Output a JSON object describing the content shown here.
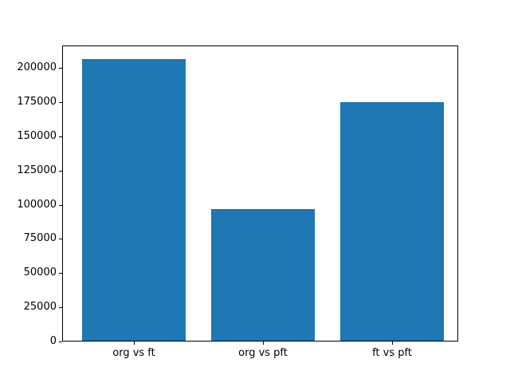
{
  "chart_data": {
    "type": "bar",
    "title": "",
    "xlabel": "",
    "ylabel": "",
    "categories": [
      "org vs ft",
      "org vs pft",
      "ft vs pft"
    ],
    "values": [
      206000,
      96200,
      174600
    ],
    "yticks": [
      0,
      25000,
      50000,
      75000,
      100000,
      125000,
      150000,
      175000,
      200000
    ],
    "ytick_labels": [
      "0",
      "25000",
      "50000",
      "75000",
      "100000",
      "125000",
      "150000",
      "175000",
      "200000"
    ],
    "ylim": [
      0,
      216500
    ],
    "bar_color": "#1f77b4",
    "background_color": "#ffffff",
    "frame_color": "#000000",
    "grid": false,
    "legend": null
  }
}
